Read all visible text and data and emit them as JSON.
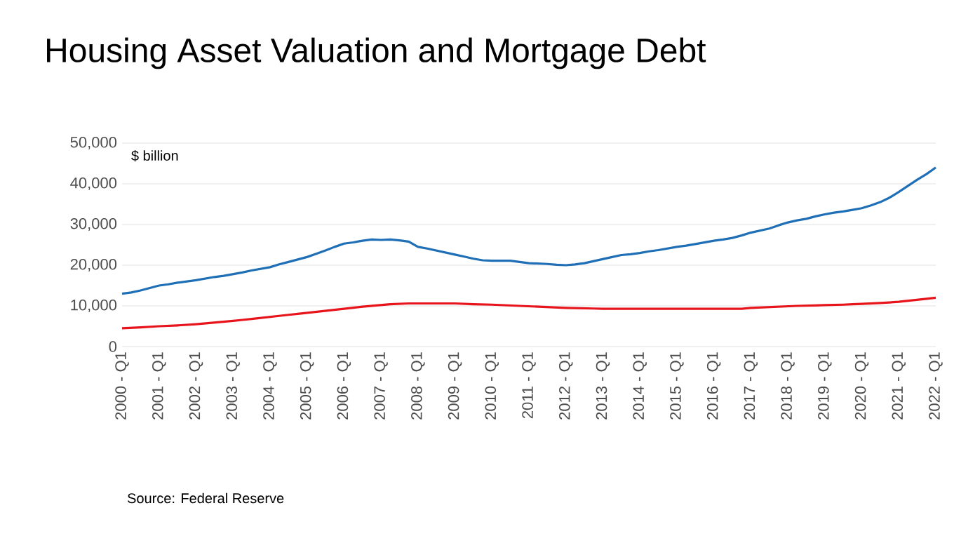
{
  "chart_data": {
    "type": "line",
    "title": "Housing Asset Valuation and Mortgage Debt",
    "annotations": [
      "$ billion",
      "Source: Federal Reserve"
    ],
    "categories": [
      "2000 - Q1",
      null,
      null,
      null,
      "2001 - Q1",
      null,
      null,
      null,
      "2002 - Q1",
      null,
      null,
      null,
      "2003 - Q1",
      null,
      null,
      null,
      "2004 - Q1",
      null,
      null,
      null,
      "2005 - Q1",
      null,
      null,
      null,
      "2006 - Q1",
      null,
      null,
      null,
      "2007 - Q1",
      null,
      null,
      null,
      "2008 - Q1",
      null,
      null,
      null,
      "2009 - Q1",
      null,
      null,
      null,
      "2010 - Q1",
      null,
      null,
      null,
      "2011 - Q1",
      null,
      null,
      null,
      "2012 - Q1",
      null,
      null,
      null,
      "2013 - Q1",
      null,
      null,
      null,
      "2014 - Q1",
      null,
      null,
      null,
      "2015 - Q1",
      null,
      null,
      null,
      "2016 - Q1",
      null,
      null,
      null,
      "2017 - Q1",
      null,
      null,
      null,
      "2018 - Q1",
      null,
      null,
      null,
      "2019 - Q1",
      null,
      null,
      null,
      "2020 - Q1",
      null,
      null,
      null,
      "2021 - Q1",
      null,
      null,
      null,
      "2022 - Q1"
    ],
    "ylim": [
      0,
      50000
    ],
    "yticks": [
      0,
      {
        "value": 10000,
        "label": "10,000"
      },
      {
        "value": 20000,
        "label": "20,000"
      },
      {
        "value": 30000,
        "label": "30,000"
      },
      {
        "value": 40000,
        "label": "40,000"
      },
      {
        "value": 50000,
        "label": "50,000"
      }
    ],
    "grid": "y",
    "series": [
      {
        "color": "#1f6fb7",
        "values": [
          13000,
          13300,
          13800,
          14400,
          15000,
          15300,
          15700,
          16000,
          16300,
          16700,
          17100,
          17400,
          17800,
          18200,
          18700,
          19100,
          19500,
          20200,
          20800,
          21400,
          22000,
          22800,
          23600,
          24500,
          25300,
          25600,
          26000,
          26300,
          26200,
          26300,
          26100,
          25800,
          24500,
          24100,
          23600,
          23100,
          22600,
          22100,
          21600,
          21200,
          21100,
          21100,
          21100,
          20800,
          20500,
          20400,
          20300,
          20100,
          20000,
          20200,
          20500,
          21000,
          21500,
          22000,
          22500,
          22700,
          23000,
          23400,
          23700,
          24100,
          24500,
          24800,
          25200,
          25600,
          26000,
          26300,
          26700,
          27300,
          28000,
          28500,
          29000,
          29800,
          30500,
          31000,
          31400,
          32000,
          32500,
          32900,
          33200,
          33600,
          34000,
          34700,
          35500,
          36600,
          38000,
          39500,
          41000,
          42400,
          44000
        ]
      },
      {
        "color": "#e8141b",
        "values": [
          4500,
          4600,
          4700,
          4850,
          5000,
          5100,
          5200,
          5350,
          5500,
          5700,
          5900,
          6100,
          6300,
          6550,
          6800,
          7050,
          7300,
          7550,
          7800,
          8050,
          8300,
          8550,
          8800,
          9050,
          9300,
          9550,
          9800,
          10000,
          10200,
          10400,
          10500,
          10600,
          10600,
          10600,
          10600,
          10600,
          10600,
          10500,
          10400,
          10350,
          10300,
          10200,
          10100,
          10000,
          9900,
          9800,
          9700,
          9600,
          9500,
          9450,
          9400,
          9350,
          9300,
          9300,
          9300,
          9300,
          9300,
          9300,
          9300,
          9300,
          9300,
          9300,
          9300,
          9300,
          9300,
          9300,
          9300,
          9300,
          9500,
          9600,
          9700,
          9800,
          9900,
          10000,
          10050,
          10100,
          10200,
          10250,
          10300,
          10400,
          10500,
          10600,
          10700,
          10850,
          11000,
          11250,
          11500,
          11750,
          12000
        ]
      }
    ]
  }
}
